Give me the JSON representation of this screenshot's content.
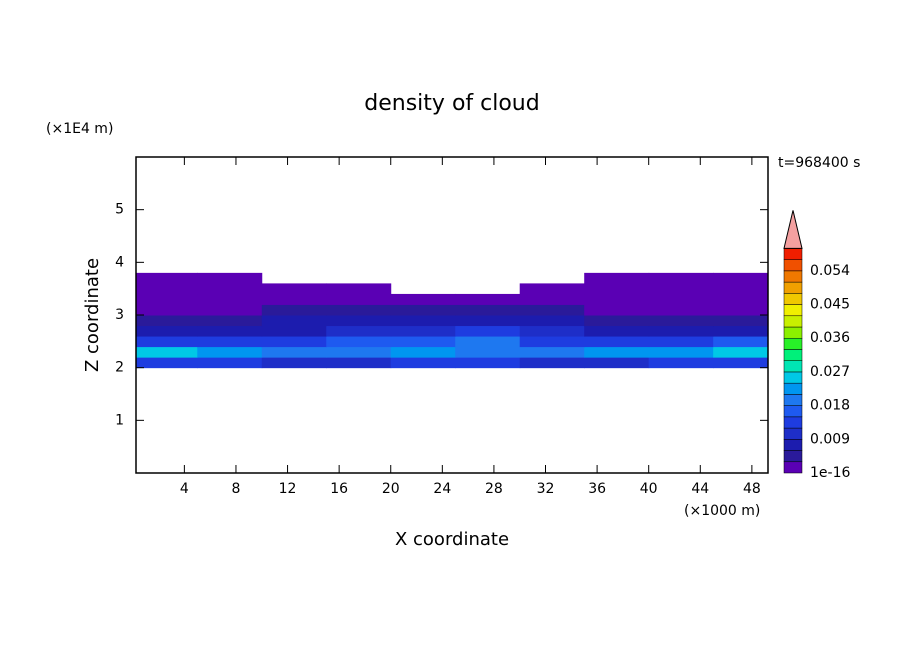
{
  "chart_data": {
    "type": "contour",
    "title": "density of cloud",
    "y_unit": "(×1E4 m)",
    "x_unit": "(×1000 m)",
    "time_label": "t=968400 s",
    "xlabel": "X coordinate",
    "ylabel": "Z coordinate",
    "xlim": [
      0.25,
      49.25
    ],
    "ylim": [
      0,
      6
    ],
    "xticks": [
      4,
      8,
      12,
      16,
      20,
      24,
      28,
      32,
      36,
      40,
      44,
      48
    ],
    "yticks": [
      1,
      2,
      3,
      4,
      5
    ],
    "field": {
      "x": [
        2.5,
        7.5,
        12.5,
        17.5,
        22.5,
        27.5,
        32.5,
        37.5,
        42.5,
        47.5
      ],
      "z": [
        2.1,
        2.3,
        2.5,
        2.7,
        2.9,
        3.1,
        3.3,
        3.5,
        3.7
      ],
      "values": [
        [
          0.012,
          0.012,
          0.01,
          0.011,
          0.012,
          0.012,
          0.01,
          0.011,
          0.012,
          0.013
        ],
        [
          0.026,
          0.022,
          0.018,
          0.02,
          0.022,
          0.02,
          0.019,
          0.023,
          0.022,
          0.025
        ],
        [
          0.014,
          0.013,
          0.012,
          0.016,
          0.017,
          0.018,
          0.014,
          0.012,
          0.013,
          0.015
        ],
        [
          0.007,
          0.007,
          0.008,
          0.01,
          0.011,
          0.012,
          0.009,
          0.007,
          0.007,
          0.007
        ],
        [
          0.004,
          0.005,
          0.006,
          0.007,
          0.008,
          0.008,
          0.006,
          0.005,
          0.004,
          0.004
        ],
        [
          0.002,
          0.002,
          0.003,
          0.004,
          0.005,
          0.005,
          0.004,
          0.002,
          0.002,
          0.002
        ],
        [
          0.001,
          0.001,
          0.001,
          0.002,
          0.002,
          0.002,
          0.001,
          0.001,
          0.001,
          0.001
        ],
        [
          0.001,
          0.001,
          0.001,
          0.001,
          null,
          null,
          0.001,
          0.001,
          0.001,
          0.001
        ],
        [
          0.001,
          0.001,
          null,
          null,
          null,
          null,
          null,
          0.001,
          0.001,
          0.001
        ]
      ]
    },
    "levels": [
      1e-16,
      0.003,
      0.006,
      0.009,
      0.012,
      0.015,
      0.018,
      0.021,
      0.024,
      0.027,
      0.03,
      0.033,
      0.036,
      0.039,
      0.042,
      0.045,
      0.048,
      0.051,
      0.054,
      0.057
    ],
    "colors": [
      "#5a00b4",
      "#2a1a9a",
      "#1c1cae",
      "#1e2ec8",
      "#1e3ce0",
      "#1e5af0",
      "#1e78f0",
      "#0096f0",
      "#00c8e6",
      "#00e6b4",
      "#00f07a",
      "#28f028",
      "#8cf000",
      "#c8f000",
      "#f0f000",
      "#f0c800",
      "#f0a000",
      "#f07800",
      "#f05000",
      "#f01e00"
    ],
    "extend_color": "#f4a0a0",
    "colorbar_ticks": [
      1e-16,
      0.009,
      0.018,
      0.027,
      0.036,
      0.045,
      0.054
    ]
  }
}
